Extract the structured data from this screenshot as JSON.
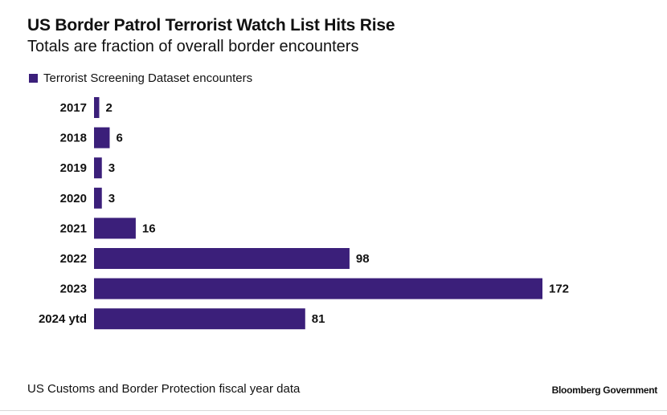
{
  "header": {
    "title": "US Border Patrol Terrorist Watch List Hits Rise",
    "subtitle": "Totals are fraction of overall border encounters"
  },
  "footer": {
    "source": "US Customs and Border Protection fiscal year data",
    "brand": "Bloomberg Government"
  },
  "colors": {
    "bar": "#3b1f7a",
    "text": "#111111"
  },
  "chart_data": {
    "type": "bar",
    "orientation": "horizontal",
    "title": "US Border Patrol Terrorist Watch List Hits Rise",
    "subtitle": "Totals are fraction of overall border encounters",
    "categories": [
      "2017",
      "2018",
      "2019",
      "2020",
      "2021",
      "2022",
      "2023",
      "2024 ytd"
    ],
    "series": [
      {
        "name": "Terrorist Screening Dataset encounters",
        "values": [
          2,
          6,
          3,
          3,
          16,
          98,
          172,
          81
        ]
      }
    ],
    "xlim": [
      0,
      172
    ],
    "grid": false,
    "legend_position": "top-left",
    "data_labels": true
  }
}
